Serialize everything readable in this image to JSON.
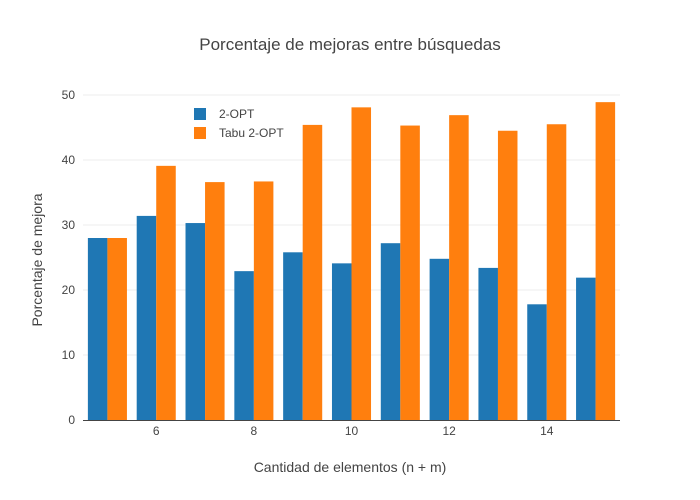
{
  "chart_data": {
    "type": "bar",
    "title": "Porcentaje de mejoras entre búsquedas",
    "xlabel": "Cantidad de elementos (n + m)",
    "ylabel": "Porcentaje de  mejora",
    "x": [
      5,
      6,
      7,
      8,
      9,
      10,
      11,
      12,
      13,
      14,
      15
    ],
    "xticks": [
      "6",
      "8",
      "10",
      "12",
      "14"
    ],
    "xtick_values": [
      6,
      8,
      10,
      12,
      14
    ],
    "ylim": [
      0,
      52
    ],
    "yticks": [
      0,
      10,
      20,
      30,
      40,
      50
    ],
    "grid": true,
    "legend_position": "top-left",
    "series": [
      {
        "name": "2-OPT",
        "color": "#1f77b4",
        "values": [
          28.0,
          31.4,
          30.3,
          22.9,
          25.8,
          24.1,
          27.2,
          24.8,
          23.4,
          17.8,
          21.9
        ]
      },
      {
        "name": "Tabu 2-OPT",
        "color": "#ff7f0e",
        "values": [
          28.0,
          39.1,
          36.6,
          36.7,
          45.4,
          48.1,
          45.3,
          46.9,
          44.5,
          45.5,
          48.9
        ]
      }
    ]
  }
}
